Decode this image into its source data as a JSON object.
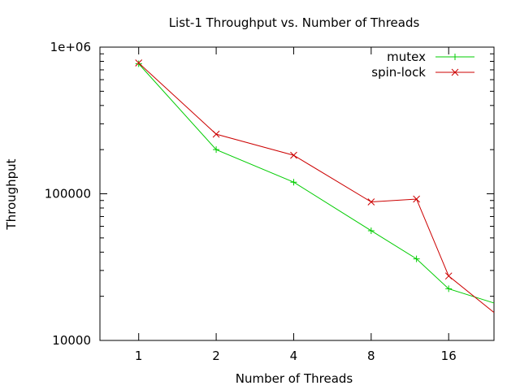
{
  "chart_data": {
    "type": "line",
    "title": "List-1 Throughput vs. Number of Threads",
    "xlabel": "Number of Threads",
    "ylabel": "Throughput",
    "x_scale": "log2",
    "y_scale": "log10",
    "xlim": [
      0.707,
      24
    ],
    "ylim": [
      10000,
      1000000
    ],
    "x_ticks": [
      1,
      2,
      4,
      8,
      16
    ],
    "x_tick_labels": [
      "1",
      "2",
      "4",
      "8",
      "16"
    ],
    "y_ticks": [
      10000,
      100000,
      1000000
    ],
    "y_tick_labels": [
      "10000",
      "100000",
      "1e+06"
    ],
    "grid": false,
    "legend_position": "top-right",
    "series": [
      {
        "name": "mutex",
        "color": "#00cc00",
        "marker": "plus",
        "x": [
          1,
          2,
          4,
          8,
          12,
          16,
          24
        ],
        "y": [
          770000,
          200000,
          120000,
          56000,
          36000,
          22500,
          18000
        ]
      },
      {
        "name": "spin-lock",
        "color": "#cc0000",
        "marker": "cross",
        "x": [
          1,
          2,
          4,
          8,
          12,
          16,
          24
        ],
        "y": [
          780000,
          255000,
          183000,
          88000,
          92000,
          27500,
          15500
        ]
      }
    ]
  }
}
